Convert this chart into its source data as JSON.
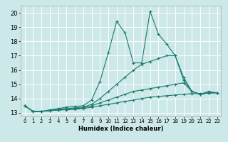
{
  "title": "",
  "xlabel": "Humidex (Indice chaleur)",
  "bg_color": "#cce8e8",
  "grid_color": "#ffffff",
  "line_color": "#1a7a6e",
  "xlim": [
    -0.5,
    23.5
  ],
  "ylim": [
    12.75,
    20.5
  ],
  "xticks": [
    0,
    1,
    2,
    3,
    4,
    5,
    6,
    7,
    8,
    9,
    10,
    11,
    12,
    13,
    14,
    15,
    16,
    17,
    18,
    19,
    20,
    21,
    22,
    23
  ],
  "yticks": [
    13,
    14,
    15,
    16,
    17,
    18,
    19,
    20
  ],
  "series": [
    {
      "x": [
        0,
        1,
        2,
        3,
        4,
        5,
        6,
        7,
        8,
        9,
        10,
        11,
        12,
        13,
        14,
        15,
        16,
        17,
        18,
        19,
        20,
        21,
        22,
        23
      ],
      "y": [
        13.5,
        13.1,
        13.1,
        13.2,
        13.3,
        13.4,
        13.45,
        13.5,
        13.9,
        15.2,
        17.2,
        19.4,
        18.6,
        16.5,
        16.5,
        20.1,
        18.5,
        17.8,
        17.0,
        15.5,
        14.5,
        14.3,
        14.4,
        14.4
      ]
    },
    {
      "x": [
        0,
        1,
        2,
        3,
        4,
        5,
        6,
        7,
        8,
        9,
        10,
        11,
        12,
        13,
        14,
        15,
        16,
        17,
        18,
        19,
        20,
        21,
        22,
        23
      ],
      "y": [
        13.5,
        13.1,
        13.1,
        13.2,
        13.25,
        13.3,
        13.35,
        13.4,
        13.6,
        14.0,
        14.5,
        15.0,
        15.5,
        16.0,
        16.4,
        16.6,
        16.8,
        17.0,
        17.0,
        15.3,
        14.5,
        14.3,
        14.5,
        14.4
      ]
    },
    {
      "x": [
        0,
        1,
        2,
        3,
        4,
        5,
        6,
        7,
        8,
        9,
        10,
        11,
        12,
        13,
        14,
        15,
        16,
        17,
        18,
        19,
        20,
        21,
        22,
        23
      ],
      "y": [
        13.5,
        13.1,
        13.1,
        13.15,
        13.2,
        13.25,
        13.3,
        13.35,
        13.5,
        13.7,
        13.9,
        14.1,
        14.3,
        14.5,
        14.6,
        14.7,
        14.8,
        14.9,
        15.0,
        15.1,
        14.5,
        14.3,
        14.4,
        14.4
      ]
    },
    {
      "x": [
        0,
        1,
        2,
        3,
        4,
        5,
        6,
        7,
        8,
        9,
        10,
        11,
        12,
        13,
        14,
        15,
        16,
        17,
        18,
        19,
        20,
        21,
        22,
        23
      ],
      "y": [
        13.5,
        13.1,
        13.1,
        13.15,
        13.2,
        13.22,
        13.25,
        13.3,
        13.4,
        13.5,
        13.6,
        13.7,
        13.8,
        13.9,
        14.0,
        14.1,
        14.15,
        14.2,
        14.25,
        14.3,
        14.35,
        14.35,
        14.4,
        14.4
      ]
    }
  ]
}
